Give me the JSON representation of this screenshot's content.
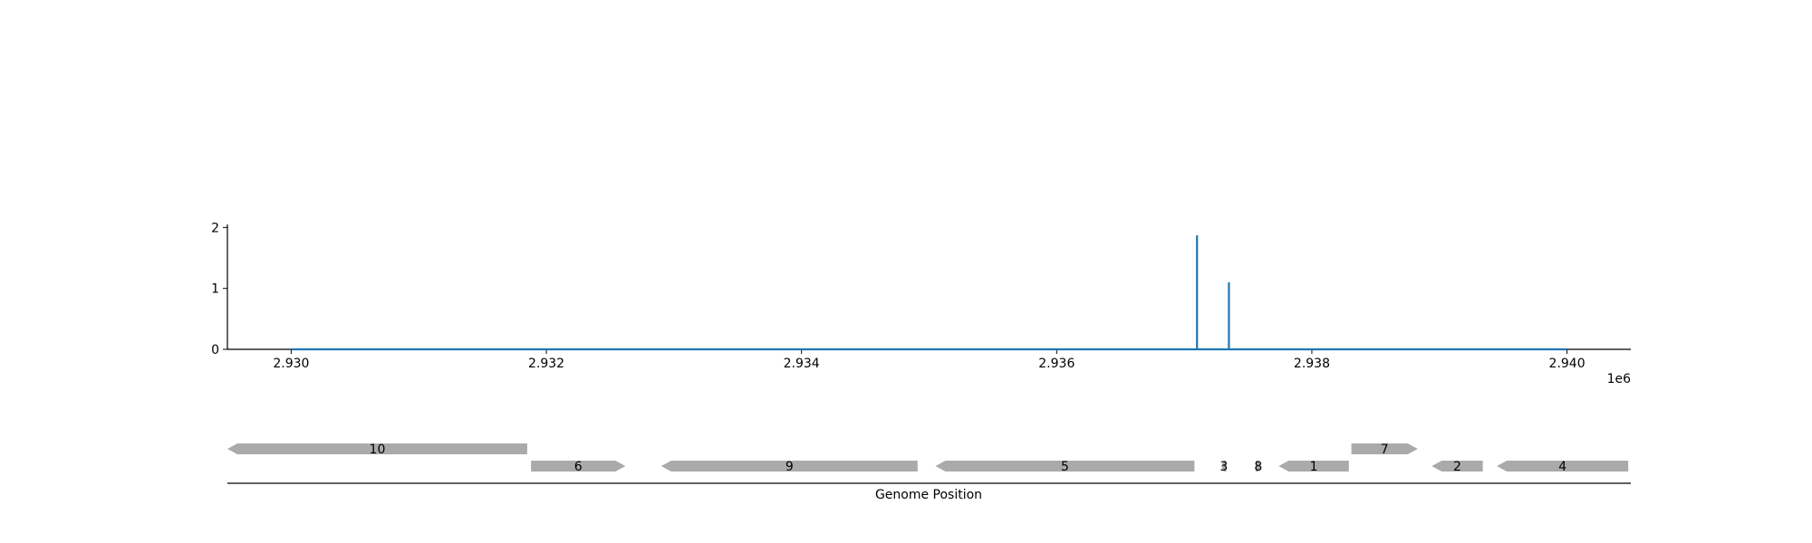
{
  "chart_data": [
    {
      "type": "line",
      "panel": "coverage",
      "x_tick_labels": [
        "2.930",
        "2.932",
        "2.934",
        "2.936",
        "2.938",
        "2.940"
      ],
      "x_ticks": [
        2930000,
        2932000,
        2934000,
        2936000,
        2938000,
        2940000
      ],
      "x_offset_label": "1e6",
      "xlim": [
        2929500,
        2940500
      ],
      "y_tick_labels": [
        "0",
        "1",
        "2"
      ],
      "y_ticks": [
        0,
        1,
        2
      ],
      "ylim": [
        0,
        2.05
      ],
      "grid": false,
      "series": [
        {
          "color": "#1f77b4",
          "x": [
            2930000,
            2937100,
            2937100,
            2937100,
            2937350,
            2937350,
            2937350,
            2940000
          ],
          "y": [
            0,
            0,
            1.87,
            0,
            0,
            1.1,
            0,
            0
          ]
        }
      ]
    },
    {
      "type": "gene-track",
      "panel": "genes",
      "xlabel": "Genome Position",
      "xlim": [
        2929500,
        2940500
      ],
      "feature_color": "#aaaaaa",
      "features": [
        {
          "label": "10",
          "start": 2929500,
          "end": 2931850,
          "strand": "-",
          "row": 0
        },
        {
          "label": "6",
          "start": 2931880,
          "end": 2932620,
          "strand": "+",
          "row": 1
        },
        {
          "label": "9",
          "start": 2932900,
          "end": 2934910,
          "strand": "-",
          "row": 1
        },
        {
          "label": "5",
          "start": 2935050,
          "end": 2937080,
          "strand": "-",
          "row": 1
        },
        {
          "label": "3",
          "start": 2937290,
          "end": 2937330,
          "strand": "-",
          "row": 1
        },
        {
          "label": "8",
          "start": 2937560,
          "end": 2937600,
          "strand": "+",
          "row": 1
        },
        {
          "label": "1",
          "start": 2937740,
          "end": 2938290,
          "strand": "-",
          "row": 1
        },
        {
          "label": "7",
          "start": 2938310,
          "end": 2938830,
          "strand": "+",
          "row": 0
        },
        {
          "label": "2",
          "start": 2938940,
          "end": 2939340,
          "strand": "-",
          "row": 1
        },
        {
          "label": "4",
          "start": 2939450,
          "end": 2940480,
          "strand": "-",
          "row": 1
        }
      ]
    }
  ]
}
